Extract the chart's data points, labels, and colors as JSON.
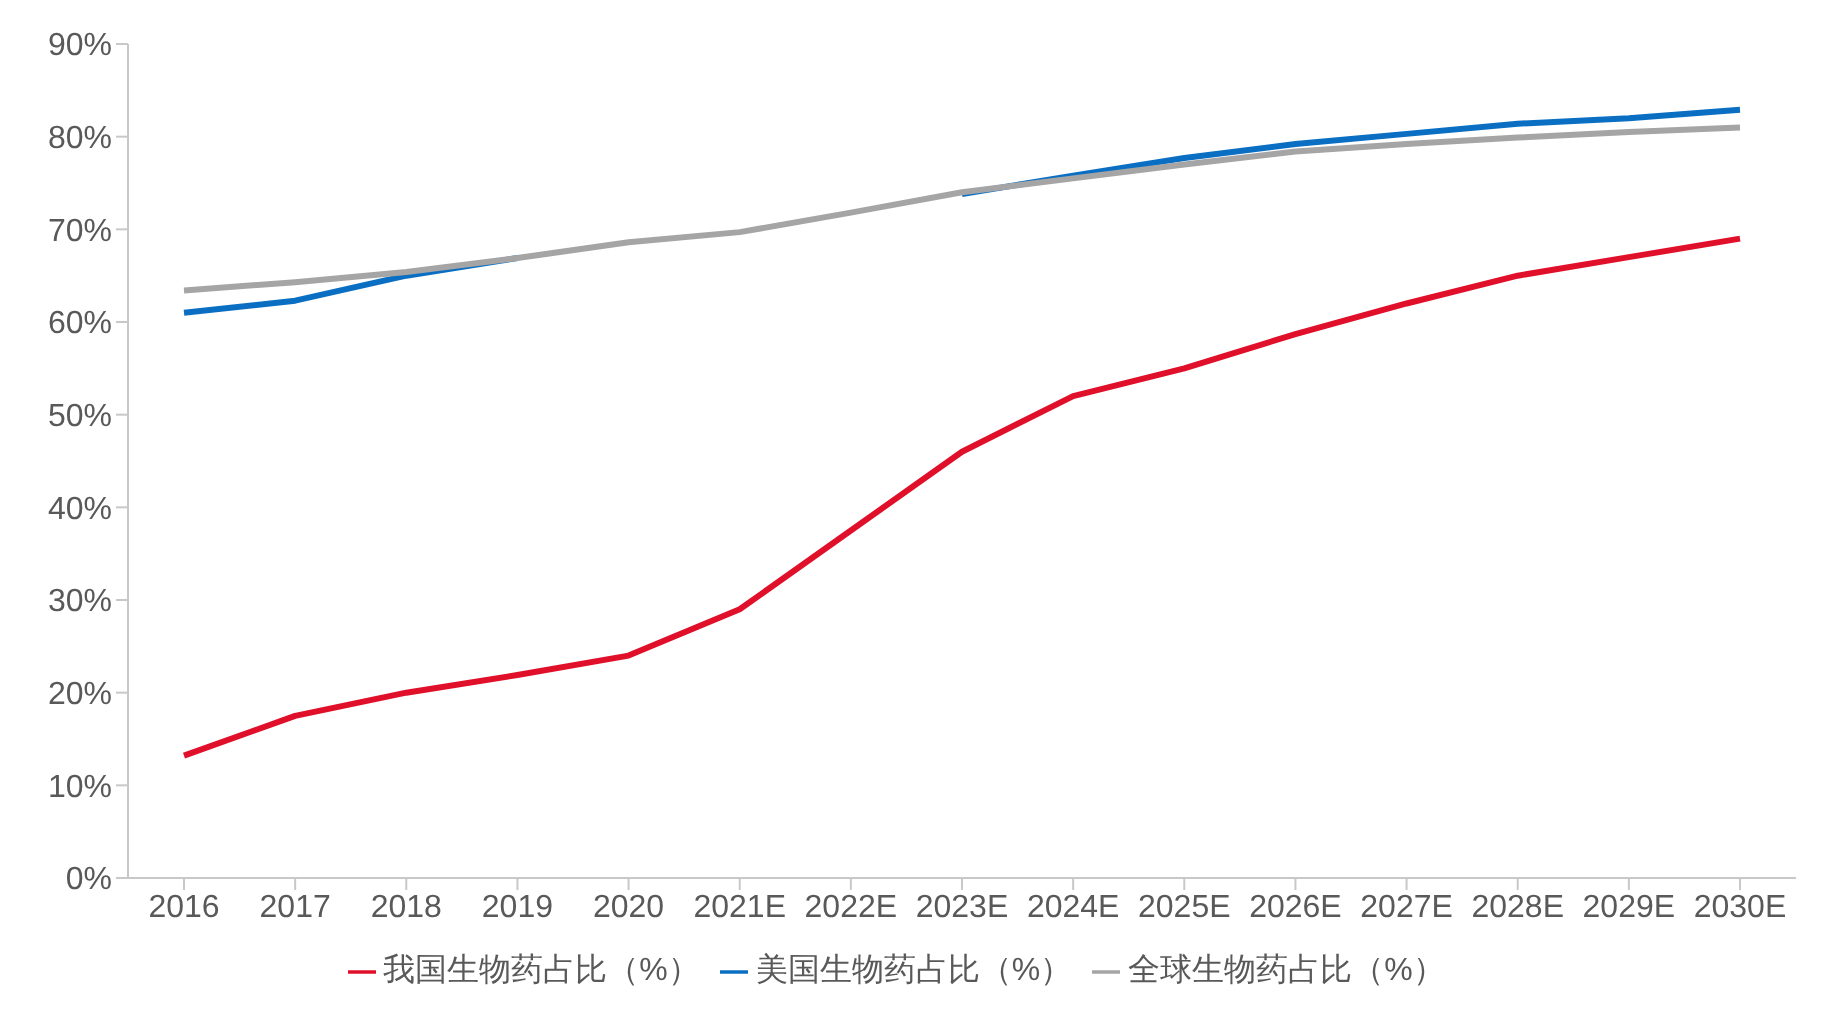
{
  "chart_data": {
    "type": "line",
    "categories": [
      "2016",
      "2017",
      "2018",
      "2019",
      "2020",
      "2021E",
      "2022E",
      "2023E",
      "2024E",
      "2025E",
      "2026E",
      "2027E",
      "2028E",
      "2029E",
      "2030E"
    ],
    "series": [
      {
        "name": "我国生物药占比（%）",
        "color": "#e0102a",
        "values": [
          13.2,
          17.5,
          20,
          21.9,
          24,
          29,
          37.5,
          46,
          52,
          55,
          58.7,
          62,
          65,
          67,
          69
        ]
      },
      {
        "name": "美国生物药占比（%）",
        "color": "#0a6fc2",
        "values": [
          61,
          62.3,
          65,
          66.9,
          null,
          null,
          null,
          73.8,
          75.8,
          77.7,
          79.2,
          80.3,
          81.4,
          82,
          82.9
        ]
      },
      {
        "name": "全球生物药占比（%）",
        "color": "#a5a5a5",
        "values": [
          63.4,
          64.3,
          65.4,
          66.9,
          68.6,
          69.7,
          71.8,
          74,
          75.5,
          77,
          78.4,
          79.2,
          79.9,
          80.5,
          81
        ]
      }
    ],
    "ylim": [
      0,
      90
    ],
    "yticks": [
      {
        "value": 0,
        "label": "0%"
      },
      {
        "value": 10,
        "label": "10%"
      },
      {
        "value": 20,
        "label": "20%"
      },
      {
        "value": 30,
        "label": "30%"
      },
      {
        "value": 40,
        "label": "40%"
      },
      {
        "value": 50,
        "label": "50%"
      },
      {
        "value": 60,
        "label": "60%"
      },
      {
        "value": 70,
        "label": "70%"
      },
      {
        "value": 80,
        "label": "80%"
      },
      {
        "value": 90,
        "label": "90%"
      }
    ],
    "grid": false,
    "legend": "bottom",
    "marker": "none",
    "line_style": "solid"
  }
}
